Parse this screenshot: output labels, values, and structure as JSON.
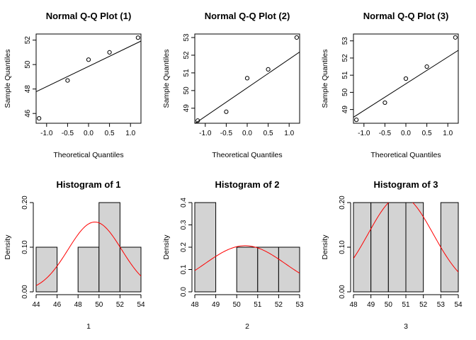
{
  "chart_data": [
    {
      "type": "scatter",
      "title": "Normal Q-Q Plot (1)",
      "xlabel": "Theoretical Quantiles",
      "ylabel": "Sample Quantiles",
      "xlim": [
        -1.25,
        1.25
      ],
      "ylim": [
        45.2,
        52.5
      ],
      "xticks": [
        -1.0,
        -0.5,
        0.0,
        0.5,
        1.0
      ],
      "xtick_labels": [
        "-1.0",
        "-0.5",
        "0.0",
        "0.5",
        "1.0"
      ],
      "yticks": [
        46,
        48,
        50,
        52
      ],
      "ytick_labels": [
        "46",
        "48",
        "50",
        "52"
      ],
      "points": {
        "x": [
          -1.18,
          -0.5,
          0.0,
          0.5,
          1.18
        ],
        "y": [
          45.6,
          48.7,
          50.4,
          51.0,
          52.2
        ]
      },
      "reference_line": {
        "x": [
          -1.25,
          1.25
        ],
        "y": [
          47.78,
          51.92
        ]
      },
      "line_color": "#000000"
    },
    {
      "type": "scatter",
      "title": "Normal Q-Q Plot (2)",
      "xlabel": "Theoretical Quantiles",
      "ylabel": "Sample Quantiles",
      "xlim": [
        -1.25,
        1.25
      ],
      "ylim": [
        48.15,
        53.2
      ],
      "xticks": [
        -1.0,
        -0.5,
        0.0,
        0.5,
        1.0
      ],
      "xtick_labels": [
        "-1.0",
        "-0.5",
        "0.0",
        "0.5",
        "1.0"
      ],
      "yticks": [
        49,
        50,
        51,
        52,
        53
      ],
      "ytick_labels": [
        "49",
        "50",
        "51",
        "52",
        "53"
      ],
      "points": {
        "x": [
          -1.18,
          -0.5,
          0.0,
          0.5,
          1.18
        ],
        "y": [
          48.3,
          48.8,
          50.7,
          51.2,
          53.0
        ]
      },
      "reference_line": {
        "x": [
          -1.25,
          1.25
        ],
        "y": [
          48.13,
          52.18
        ]
      },
      "line_color": "#000000"
    },
    {
      "type": "scatter",
      "title": "Normal Q-Q Plot (3)",
      "xlabel": "Theoretical Quantiles",
      "ylabel": "Sample Quantiles",
      "xlim": [
        -1.25,
        1.25
      ],
      "ylim": [
        48.2,
        53.4
      ],
      "xticks": [
        -1.0,
        -0.5,
        0.0,
        0.5,
        1.0
      ],
      "xtick_labels": [
        "-1.0",
        "-0.5",
        "0.0",
        "0.5",
        "1.0"
      ],
      "yticks": [
        49,
        50,
        51,
        52,
        53
      ],
      "ytick_labels": [
        "49",
        "50",
        "51",
        "52",
        "53"
      ],
      "points": {
        "x": [
          -1.18,
          -0.5,
          0.0,
          0.5,
          1.18
        ],
        "y": [
          48.4,
          49.4,
          50.8,
          51.5,
          53.2
        ]
      },
      "reference_line": {
        "x": [
          -1.25,
          1.25
        ],
        "y": [
          48.55,
          52.45
        ]
      },
      "line_color": "#000000"
    },
    {
      "type": "bar",
      "title": "Histogram of 1",
      "xlabel": "1",
      "ylabel": "Density",
      "xlim": [
        44,
        54
      ],
      "ylim": [
        0,
        0.2
      ],
      "xticks": [
        44,
        46,
        48,
        50,
        52,
        54
      ],
      "xtick_labels": [
        "44",
        "46",
        "48",
        "50",
        "52",
        "54"
      ],
      "yticks": [
        0,
        0.1,
        0.2
      ],
      "ytick_labels": [
        "0.00",
        "0.10",
        "0.20"
      ],
      "bins": [
        [
          44,
          46
        ],
        [
          46,
          48
        ],
        [
          48,
          50
        ],
        [
          50,
          52
        ],
        [
          52,
          54
        ]
      ],
      "values": [
        0.1,
        0.0,
        0.1,
        0.2,
        0.1
      ],
      "bar_color": "#d3d3d3",
      "density_curve": {
        "mean": 49.6,
        "sd": 2.55,
        "color": "#ff0000"
      }
    },
    {
      "type": "bar",
      "title": "Histogram of 2",
      "xlabel": "2",
      "ylabel": "Density",
      "xlim": [
        48,
        53
      ],
      "ylim": [
        0,
        0.4
      ],
      "xticks": [
        48,
        49,
        50,
        51,
        52,
        53
      ],
      "xtick_labels": [
        "48",
        "49",
        "50",
        "51",
        "52",
        "53"
      ],
      "yticks": [
        0,
        0.1,
        0.2,
        0.3,
        0.4
      ],
      "ytick_labels": [
        "0.0",
        "0.1",
        "0.2",
        "0.3",
        "0.4"
      ],
      "bins": [
        [
          48,
          49
        ],
        [
          49,
          50
        ],
        [
          50,
          51
        ],
        [
          51,
          52
        ],
        [
          52,
          53
        ]
      ],
      "values": [
        0.4,
        0.0,
        0.2,
        0.2,
        0.2
      ],
      "bar_color": "#d3d3d3",
      "density_curve": {
        "mean": 50.4,
        "sd": 1.93,
        "color": "#ff0000"
      }
    },
    {
      "type": "bar",
      "title": "Histogram of 3",
      "xlabel": "3",
      "ylabel": "Density",
      "xlim": [
        48,
        54
      ],
      "ylim": [
        0,
        0.2
      ],
      "xticks": [
        48,
        49,
        50,
        51,
        52,
        53,
        54
      ],
      "xtick_labels": [
        "48",
        "49",
        "50",
        "51",
        "52",
        "53",
        "54"
      ],
      "yticks": [
        0,
        0.1,
        0.2
      ],
      "ytick_labels": [
        "0.00",
        "0.10",
        "0.20"
      ],
      "bins": [
        [
          48,
          49
        ],
        [
          49,
          50
        ],
        [
          50,
          51
        ],
        [
          51,
          52
        ],
        [
          52,
          53
        ],
        [
          53,
          54
        ]
      ],
      "values": [
        0.2,
        0.2,
        0.2,
        0.2,
        0.0,
        0.2
      ],
      "bar_color": "#d3d3d3",
      "density_curve": {
        "mean": 50.7,
        "sd": 1.86,
        "color": "#ff0000"
      }
    }
  ]
}
